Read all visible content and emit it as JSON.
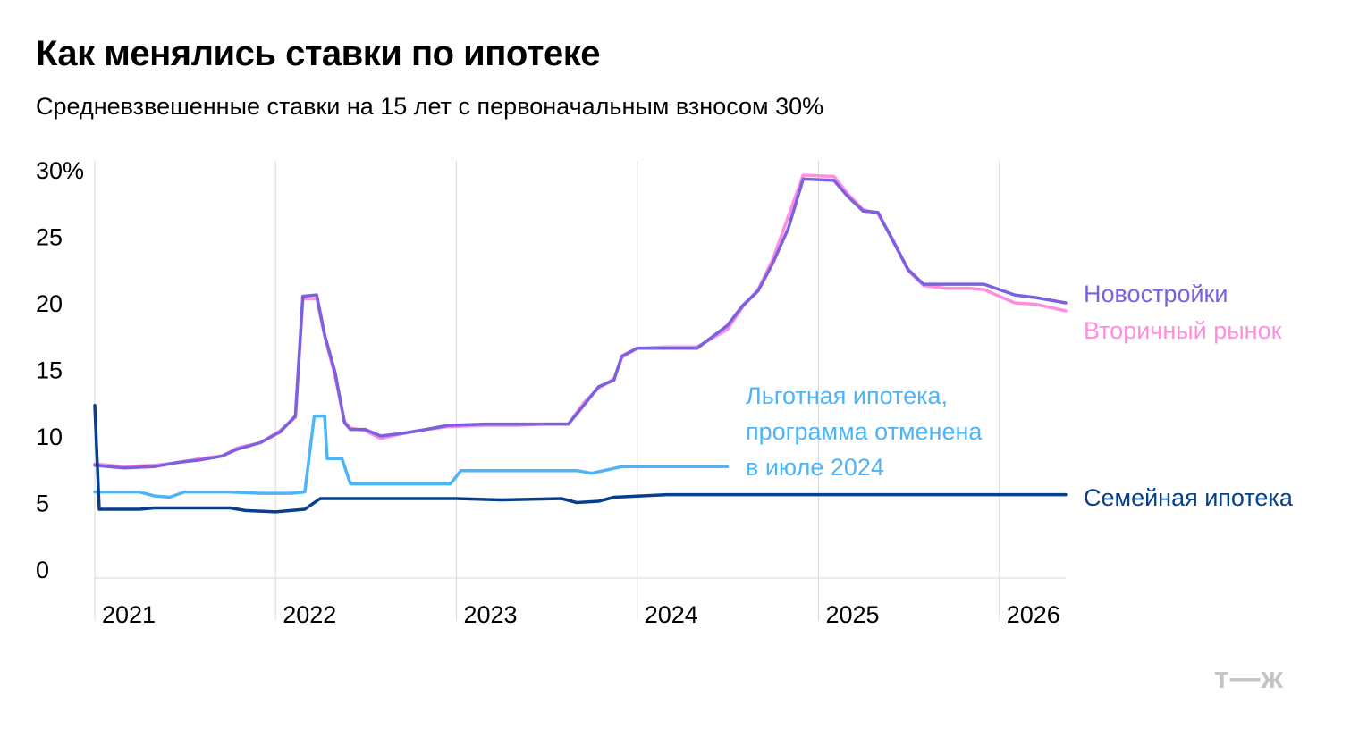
{
  "title": "Как менялись ставки по ипотеке",
  "subtitle": "Средневзвешенные ставки на 15 лет с первоначальным взносом 30%",
  "logo": "т—ж",
  "chart_data": {
    "type": "line",
    "ylim": [
      0,
      30
    ],
    "yticks": [
      {
        "value": 30,
        "label": "30%"
      },
      {
        "value": 25,
        "label": "25"
      },
      {
        "value": 20,
        "label": "20"
      },
      {
        "value": 15,
        "label": "15"
      },
      {
        "value": 10,
        "label": "10"
      },
      {
        "value": 5,
        "label": "5"
      },
      {
        "value": 0,
        "label": "0"
      }
    ],
    "xlim": [
      "2021-01-01",
      "2026-05-15"
    ],
    "xticks": [
      {
        "value": "2021-01-01",
        "label": "2021"
      },
      {
        "value": "2022-01-01",
        "label": "2022"
      },
      {
        "value": "2023-01-01",
        "label": "2023"
      },
      {
        "value": "2024-01-01",
        "label": "2024"
      },
      {
        "value": "2025-01-01",
        "label": "2025"
      },
      {
        "value": "2026-01-01",
        "label": "2026"
      }
    ],
    "grid": "vertical",
    "series": [
      {
        "name": "Вторичный рынок",
        "color": "#ff8ee0",
        "label_lines": [
          "Вторичный рынок"
        ],
        "points": [
          [
            "2021-01-01",
            7.9
          ],
          [
            "2021-03-01",
            7.7
          ],
          [
            "2021-05-01",
            7.8
          ],
          [
            "2021-06-15",
            8.0
          ],
          [
            "2021-08-01",
            8.3
          ],
          [
            "2021-09-15",
            8.5
          ],
          [
            "2021-10-15",
            9.1
          ],
          [
            "2021-12-01",
            9.5
          ],
          [
            "2022-01-10",
            10.4
          ],
          [
            "2022-02-10",
            11.4
          ],
          [
            "2022-02-25",
            20.3
          ],
          [
            "2022-03-25",
            20.3
          ],
          [
            "2022-04-10",
            17.5
          ],
          [
            "2022-05-01",
            14.5
          ],
          [
            "2022-05-20",
            11.1
          ],
          [
            "2022-06-01",
            10.6
          ],
          [
            "2022-07-01",
            10.4
          ],
          [
            "2022-08-01",
            9.8
          ],
          [
            "2022-09-15",
            10.2
          ],
          [
            "2022-11-01",
            10.5
          ],
          [
            "2022-12-15",
            10.7
          ],
          [
            "2023-03-01",
            10.8
          ],
          [
            "2023-05-01",
            10.8
          ],
          [
            "2023-07-01",
            10.9
          ],
          [
            "2023-08-15",
            10.9
          ],
          [
            "2023-09-15",
            12.5
          ],
          [
            "2023-10-15",
            13.6
          ],
          [
            "2023-11-15",
            14.3
          ],
          [
            "2023-12-01",
            15.9
          ],
          [
            "2024-01-01",
            16.6
          ],
          [
            "2024-03-01",
            16.7
          ],
          [
            "2024-05-01",
            16.7
          ],
          [
            "2024-07-01",
            18.0
          ],
          [
            "2024-08-01",
            19.7
          ],
          [
            "2024-09-01",
            21.0
          ],
          [
            "2024-10-01",
            23.3
          ],
          [
            "2024-11-01",
            26.5
          ],
          [
            "2024-12-01",
            29.6
          ],
          [
            "2025-02-01",
            29.5
          ],
          [
            "2025-03-01",
            28.2
          ],
          [
            "2025-04-01",
            27.0
          ],
          [
            "2025-05-01",
            26.7
          ],
          [
            "2025-06-01",
            24.7
          ],
          [
            "2025-07-01",
            22.4
          ],
          [
            "2025-08-01",
            21.3
          ],
          [
            "2025-09-15",
            21.1
          ],
          [
            "2025-11-01",
            21.1
          ],
          [
            "2025-12-01",
            21.0
          ],
          [
            "2026-02-01",
            20.0
          ],
          [
            "2026-03-15",
            19.9
          ],
          [
            "2026-05-15",
            19.4
          ]
        ]
      },
      {
        "name": "Новостройки",
        "color": "#7b61e0",
        "label_lines": [
          "Новостройки"
        ],
        "points": [
          [
            "2021-01-01",
            7.8
          ],
          [
            "2021-03-01",
            7.6
          ],
          [
            "2021-05-01",
            7.7
          ],
          [
            "2021-06-15",
            8.0
          ],
          [
            "2021-08-01",
            8.2
          ],
          [
            "2021-09-15",
            8.5
          ],
          [
            "2021-10-15",
            9.0
          ],
          [
            "2021-12-01",
            9.5
          ],
          [
            "2022-01-10",
            10.3
          ],
          [
            "2022-02-10",
            11.5
          ],
          [
            "2022-02-25",
            20.5
          ],
          [
            "2022-03-25",
            20.6
          ],
          [
            "2022-04-10",
            17.6
          ],
          [
            "2022-05-01",
            14.8
          ],
          [
            "2022-05-20",
            11.0
          ],
          [
            "2022-06-01",
            10.5
          ],
          [
            "2022-07-01",
            10.5
          ],
          [
            "2022-08-01",
            10.0
          ],
          [
            "2022-09-15",
            10.2
          ],
          [
            "2022-11-01",
            10.5
          ],
          [
            "2022-12-15",
            10.8
          ],
          [
            "2023-03-01",
            10.9
          ],
          [
            "2023-05-01",
            10.9
          ],
          [
            "2023-07-01",
            10.9
          ],
          [
            "2023-08-15",
            10.9
          ],
          [
            "2023-09-15",
            12.3
          ],
          [
            "2023-10-15",
            13.7
          ],
          [
            "2023-11-15",
            14.2
          ],
          [
            "2023-12-01",
            16.0
          ],
          [
            "2024-01-01",
            16.6
          ],
          [
            "2024-03-01",
            16.6
          ],
          [
            "2024-05-01",
            16.6
          ],
          [
            "2024-07-01",
            18.3
          ],
          [
            "2024-08-01",
            19.8
          ],
          [
            "2024-09-01",
            20.9
          ],
          [
            "2024-10-01",
            23.0
          ],
          [
            "2024-11-01",
            25.6
          ],
          [
            "2024-12-01",
            29.3
          ],
          [
            "2025-02-01",
            29.2
          ],
          [
            "2025-03-01",
            28.0
          ],
          [
            "2025-04-01",
            26.9
          ],
          [
            "2025-05-01",
            26.8
          ],
          [
            "2025-06-01",
            24.6
          ],
          [
            "2025-07-01",
            22.5
          ],
          [
            "2025-08-01",
            21.4
          ],
          [
            "2025-09-15",
            21.4
          ],
          [
            "2025-11-01",
            21.4
          ],
          [
            "2025-12-01",
            21.4
          ],
          [
            "2026-02-01",
            20.6
          ],
          [
            "2026-03-15",
            20.4
          ],
          [
            "2026-05-15",
            20.0
          ]
        ]
      },
      {
        "name": "Льготная ипотека, программа отменена в июле 2024",
        "color": "#4db5f7",
        "label_lines": [
          "Льготная ипотека,",
          "программа отменена",
          "в июле 2024"
        ],
        "points": [
          [
            "2021-01-01",
            5.8
          ],
          [
            "2021-04-01",
            5.8
          ],
          [
            "2021-05-01",
            5.5
          ],
          [
            "2021-06-01",
            5.4
          ],
          [
            "2021-07-01",
            5.8
          ],
          [
            "2021-10-01",
            5.8
          ],
          [
            "2021-12-01",
            5.7
          ],
          [
            "2022-02-01",
            5.7
          ],
          [
            "2022-03-01",
            5.8
          ],
          [
            "2022-03-20",
            11.5
          ],
          [
            "2022-04-10",
            11.5
          ],
          [
            "2022-04-15",
            8.3
          ],
          [
            "2022-05-15",
            8.3
          ],
          [
            "2022-06-01",
            6.4
          ],
          [
            "2022-12-20",
            6.4
          ],
          [
            "2023-01-10",
            7.4
          ],
          [
            "2023-09-01",
            7.4
          ],
          [
            "2023-10-01",
            7.2
          ],
          [
            "2023-12-01",
            7.7
          ],
          [
            "2024-07-01",
            7.7
          ]
        ]
      },
      {
        "name": "Семейная ипотека",
        "color": "#073f8c",
        "label_lines": [
          "Семейная ипотека"
        ],
        "points": [
          [
            "2021-01-01",
            12.3
          ],
          [
            "2021-01-10",
            4.5
          ],
          [
            "2021-04-01",
            4.5
          ],
          [
            "2021-05-01",
            4.6
          ],
          [
            "2021-10-01",
            4.6
          ],
          [
            "2021-11-01",
            4.4
          ],
          [
            "2022-01-01",
            4.3
          ],
          [
            "2022-03-01",
            4.5
          ],
          [
            "2022-04-01",
            5.3
          ],
          [
            "2023-01-01",
            5.3
          ],
          [
            "2023-04-01",
            5.2
          ],
          [
            "2023-08-01",
            5.3
          ],
          [
            "2023-09-01",
            5.0
          ],
          [
            "2023-10-15",
            5.1
          ],
          [
            "2023-11-15",
            5.4
          ],
          [
            "2024-03-01",
            5.6
          ],
          [
            "2026-05-15",
            5.6
          ]
        ]
      }
    ]
  }
}
